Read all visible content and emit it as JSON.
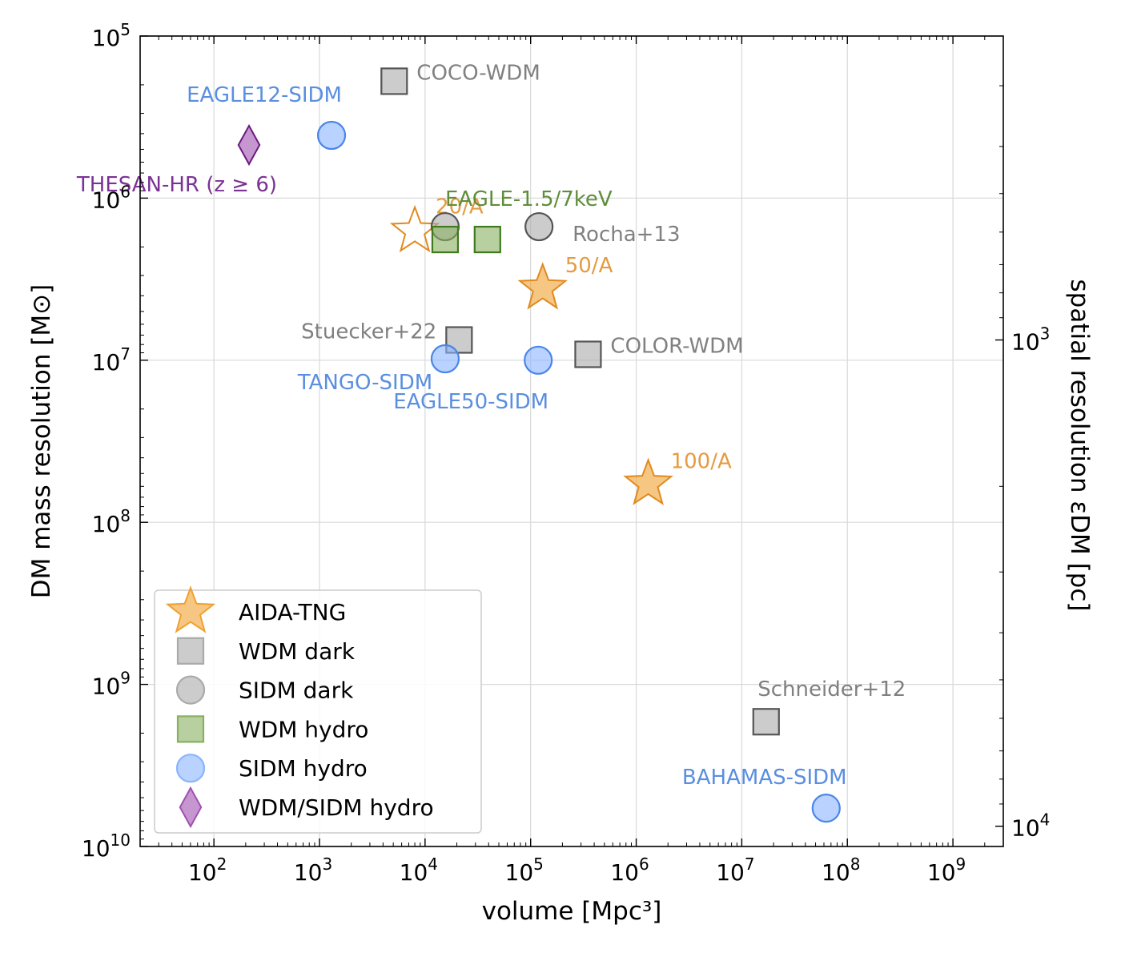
{
  "chart_data": {
    "type": "scatter",
    "xscale": "log",
    "yscale": "log",
    "y_inverted": true,
    "xlabel": "volume [Mpc³]",
    "ylabel": "DM mass resolution [M⊙]",
    "y2label": "spatial resolution εDM [pc]",
    "xlim": [
      20,
      3000000000
    ],
    "ylim": [
      100000,
      10000000000
    ],
    "grid": true,
    "x_ticks": [
      {
        "value": 100,
        "base": "10",
        "exp": "2"
      },
      {
        "value": 1000,
        "base": "10",
        "exp": "3"
      },
      {
        "value": 10000,
        "base": "10",
        "exp": "4"
      },
      {
        "value": 100000,
        "base": "10",
        "exp": "5"
      },
      {
        "value": 1000000,
        "base": "10",
        "exp": "6"
      },
      {
        "value": 10000000,
        "base": "10",
        "exp": "7"
      },
      {
        "value": 100000000,
        "base": "10",
        "exp": "8"
      },
      {
        "value": 1000000000,
        "base": "10",
        "exp": "9"
      }
    ],
    "y_ticks": [
      {
        "value": 100000,
        "base": "10",
        "exp": "5"
      },
      {
        "value": 1000000,
        "base": "10",
        "exp": "6"
      },
      {
        "value": 10000000,
        "base": "10",
        "exp": "7"
      },
      {
        "value": 100000000,
        "base": "10",
        "exp": "8"
      },
      {
        "value": 1000000000,
        "base": "10",
        "exp": "9"
      },
      {
        "value": 10000000000,
        "base": "10",
        "exp": "10"
      }
    ],
    "y2_ticks": [
      {
        "pc": 1000,
        "base": "10",
        "exp": "3"
      },
      {
        "pc": 10000,
        "base": "10",
        "exp": "4"
      }
    ],
    "y2_mapping": "spatial resolution ∝ (mass resolution)^(1/3); 10^3 pc at 7.5e6 Msun",
    "legend_position": "lower-left",
    "series": [
      {
        "name": "AIDA-TNG",
        "marker": "star",
        "color": "#f0a030",
        "edge": "#e08a1e"
      },
      {
        "name": "WDM dark",
        "marker": "square",
        "color": "#aaaaaa",
        "edge": "#555555"
      },
      {
        "name": "SIDM dark",
        "marker": "circle",
        "color": "#aaaaaa",
        "edge": "#555555"
      },
      {
        "name": "WDM hydro",
        "marker": "square",
        "color": "#88b060",
        "edge": "#3f7a1c"
      },
      {
        "name": "SIDM hydro",
        "marker": "circle",
        "color": "#8ab4ff",
        "edge": "#4a86e8"
      },
      {
        "name": "WDM/SIDM hydro",
        "marker": "diamond",
        "color": "#a050b0",
        "edge": "#6a1a80"
      }
    ],
    "points": [
      {
        "label": "20/A",
        "x": 8000,
        "y": 1600000,
        "marker": "star",
        "filled": false,
        "series": "AIDA-TNG",
        "label_color": "#e59b40",
        "label_anchor": "start",
        "label_dx": 26,
        "label_dy": -22,
        "size": 30
      },
      {
        "label": "50/A",
        "x": 130000,
        "y": 3600000,
        "marker": "star",
        "filled": true,
        "series": "AIDA-TNG",
        "label_color": "#e59b40",
        "label_anchor": "start",
        "label_dx": 28,
        "label_dy": -20,
        "size": 30
      },
      {
        "label": "100/A",
        "x": 1300000,
        "y": 58000000,
        "marker": "star",
        "filled": true,
        "series": "AIDA-TNG",
        "label_color": "#e59b40",
        "label_anchor": "start",
        "label_dx": 28,
        "label_dy": -20,
        "size": 30
      },
      {
        "label": "COCO-WDM",
        "x": 5100,
        "y": 190000,
        "marker": "square",
        "series": "WDM dark",
        "label_color": "#808080",
        "label_anchor": "start",
        "label_dx": 28,
        "label_dy": -2,
        "size": 16
      },
      {
        "label": "Stuecker+22",
        "x": 21000,
        "y": 7500000,
        "marker": "square",
        "series": "WDM dark",
        "label_color": "#808080",
        "label_anchor": "end",
        "label_dx": -28,
        "label_dy": -2,
        "size": 16
      },
      {
        "label": "COLOR-WDM",
        "x": 350000,
        "y": 9200000,
        "marker": "square",
        "series": "WDM dark",
        "label_color": "#808080",
        "label_anchor": "start",
        "label_dx": 28,
        "label_dy": -2,
        "size": 16
      },
      {
        "label": "Schneider+12",
        "x": 17000000,
        "y": 1700000000,
        "marker": "square",
        "series": "WDM dark",
        "label_color": "#808080",
        "label_anchor": "middle",
        "label_dx": 82,
        "label_dy": -32,
        "size": 16
      },
      {
        "label": "",
        "x": 15500,
        "y": 1500000,
        "marker": "circle",
        "series": "SIDM dark",
        "size": 17
      },
      {
        "label": "Rocha+13",
        "x": 120000,
        "y": 1500000,
        "marker": "circle",
        "series": "SIDM dark",
        "label_color": "#808080",
        "label_anchor": "start",
        "label_dx": 42,
        "label_dy": 18,
        "size": 17
      },
      {
        "label": "EAGLE-1.5/7keV",
        "x": 15500,
        "y": 1800000,
        "marker": "square",
        "series": "WDM hydro",
        "label_color": "#5e8e3a",
        "label_anchor": "start",
        "label_dx": 0,
        "label_dy": -42,
        "size": 16
      },
      {
        "label": "",
        "x": 39000,
        "y": 1800000,
        "marker": "square",
        "series": "WDM hydro",
        "size": 16
      },
      {
        "label": "EAGLE12-SIDM",
        "x": 1300,
        "y": 410000,
        "marker": "circle",
        "series": "SIDM hydro",
        "label_color": "#5a8ee0",
        "label_anchor": "middle",
        "label_dx": -84,
        "label_dy": -42,
        "size": 17
      },
      {
        "label": "TANGO-SIDM",
        "x": 15500,
        "y": 9800000,
        "marker": "circle",
        "series": "SIDM hydro",
        "label_color": "#5a8ee0",
        "label_anchor": "middle",
        "label_dx": -100,
        "label_dy": 38,
        "size": 17
      },
      {
        "label": "EAGLE50-SIDM",
        "x": 118000,
        "y": 10000000,
        "marker": "circle",
        "series": "SIDM hydro",
        "label_color": "#5a8ee0",
        "label_anchor": "middle",
        "label_dx": -84,
        "label_dy": 60,
        "size": 17
      },
      {
        "label": "BAHAMAS-SIDM",
        "x": 63000000,
        "y": 5800000000,
        "marker": "circle",
        "series": "SIDM hydro",
        "label_color": "#5a8ee0",
        "label_anchor": "middle",
        "label_dx": -77,
        "label_dy": -30,
        "size": 17
      },
      {
        "label": "THESAN-HR (z ≥ 6)",
        "x": 215,
        "y": 470000,
        "marker": "diamond",
        "series": "WDM/SIDM hydro",
        "label_color": "#7b3294",
        "label_anchor": "middle",
        "label_dx": -90,
        "label_dy": 58,
        "size": 24
      }
    ]
  }
}
